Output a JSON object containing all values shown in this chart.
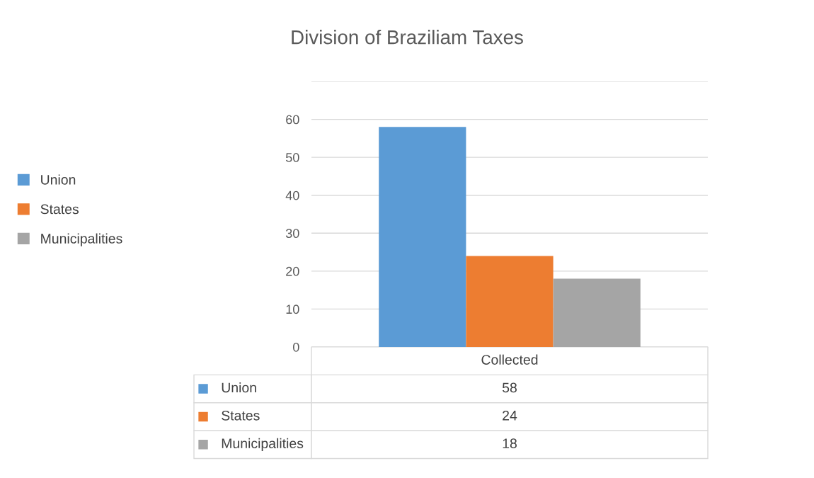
{
  "chart_data": {
    "type": "bar",
    "title": "Division of Braziliam Taxes",
    "categories": [
      "Collected"
    ],
    "series": [
      {
        "name": "Union",
        "color": "#5b9bd5",
        "values": [
          58
        ]
      },
      {
        "name": "States",
        "color": "#ed7d31",
        "values": [
          24
        ]
      },
      {
        "name": "Municipalities",
        "color": "#a5a5a5",
        "values": [
          18
        ]
      }
    ],
    "ylim": [
      0,
      70
    ],
    "yticks": [
      0,
      10,
      20,
      30,
      40,
      50,
      60,
      {
        "value": 70,
        "label": null
      }
    ],
    "grid": "y",
    "legend": "left",
    "annotations": [
      "58",
      "24",
      "18"
    ]
  }
}
